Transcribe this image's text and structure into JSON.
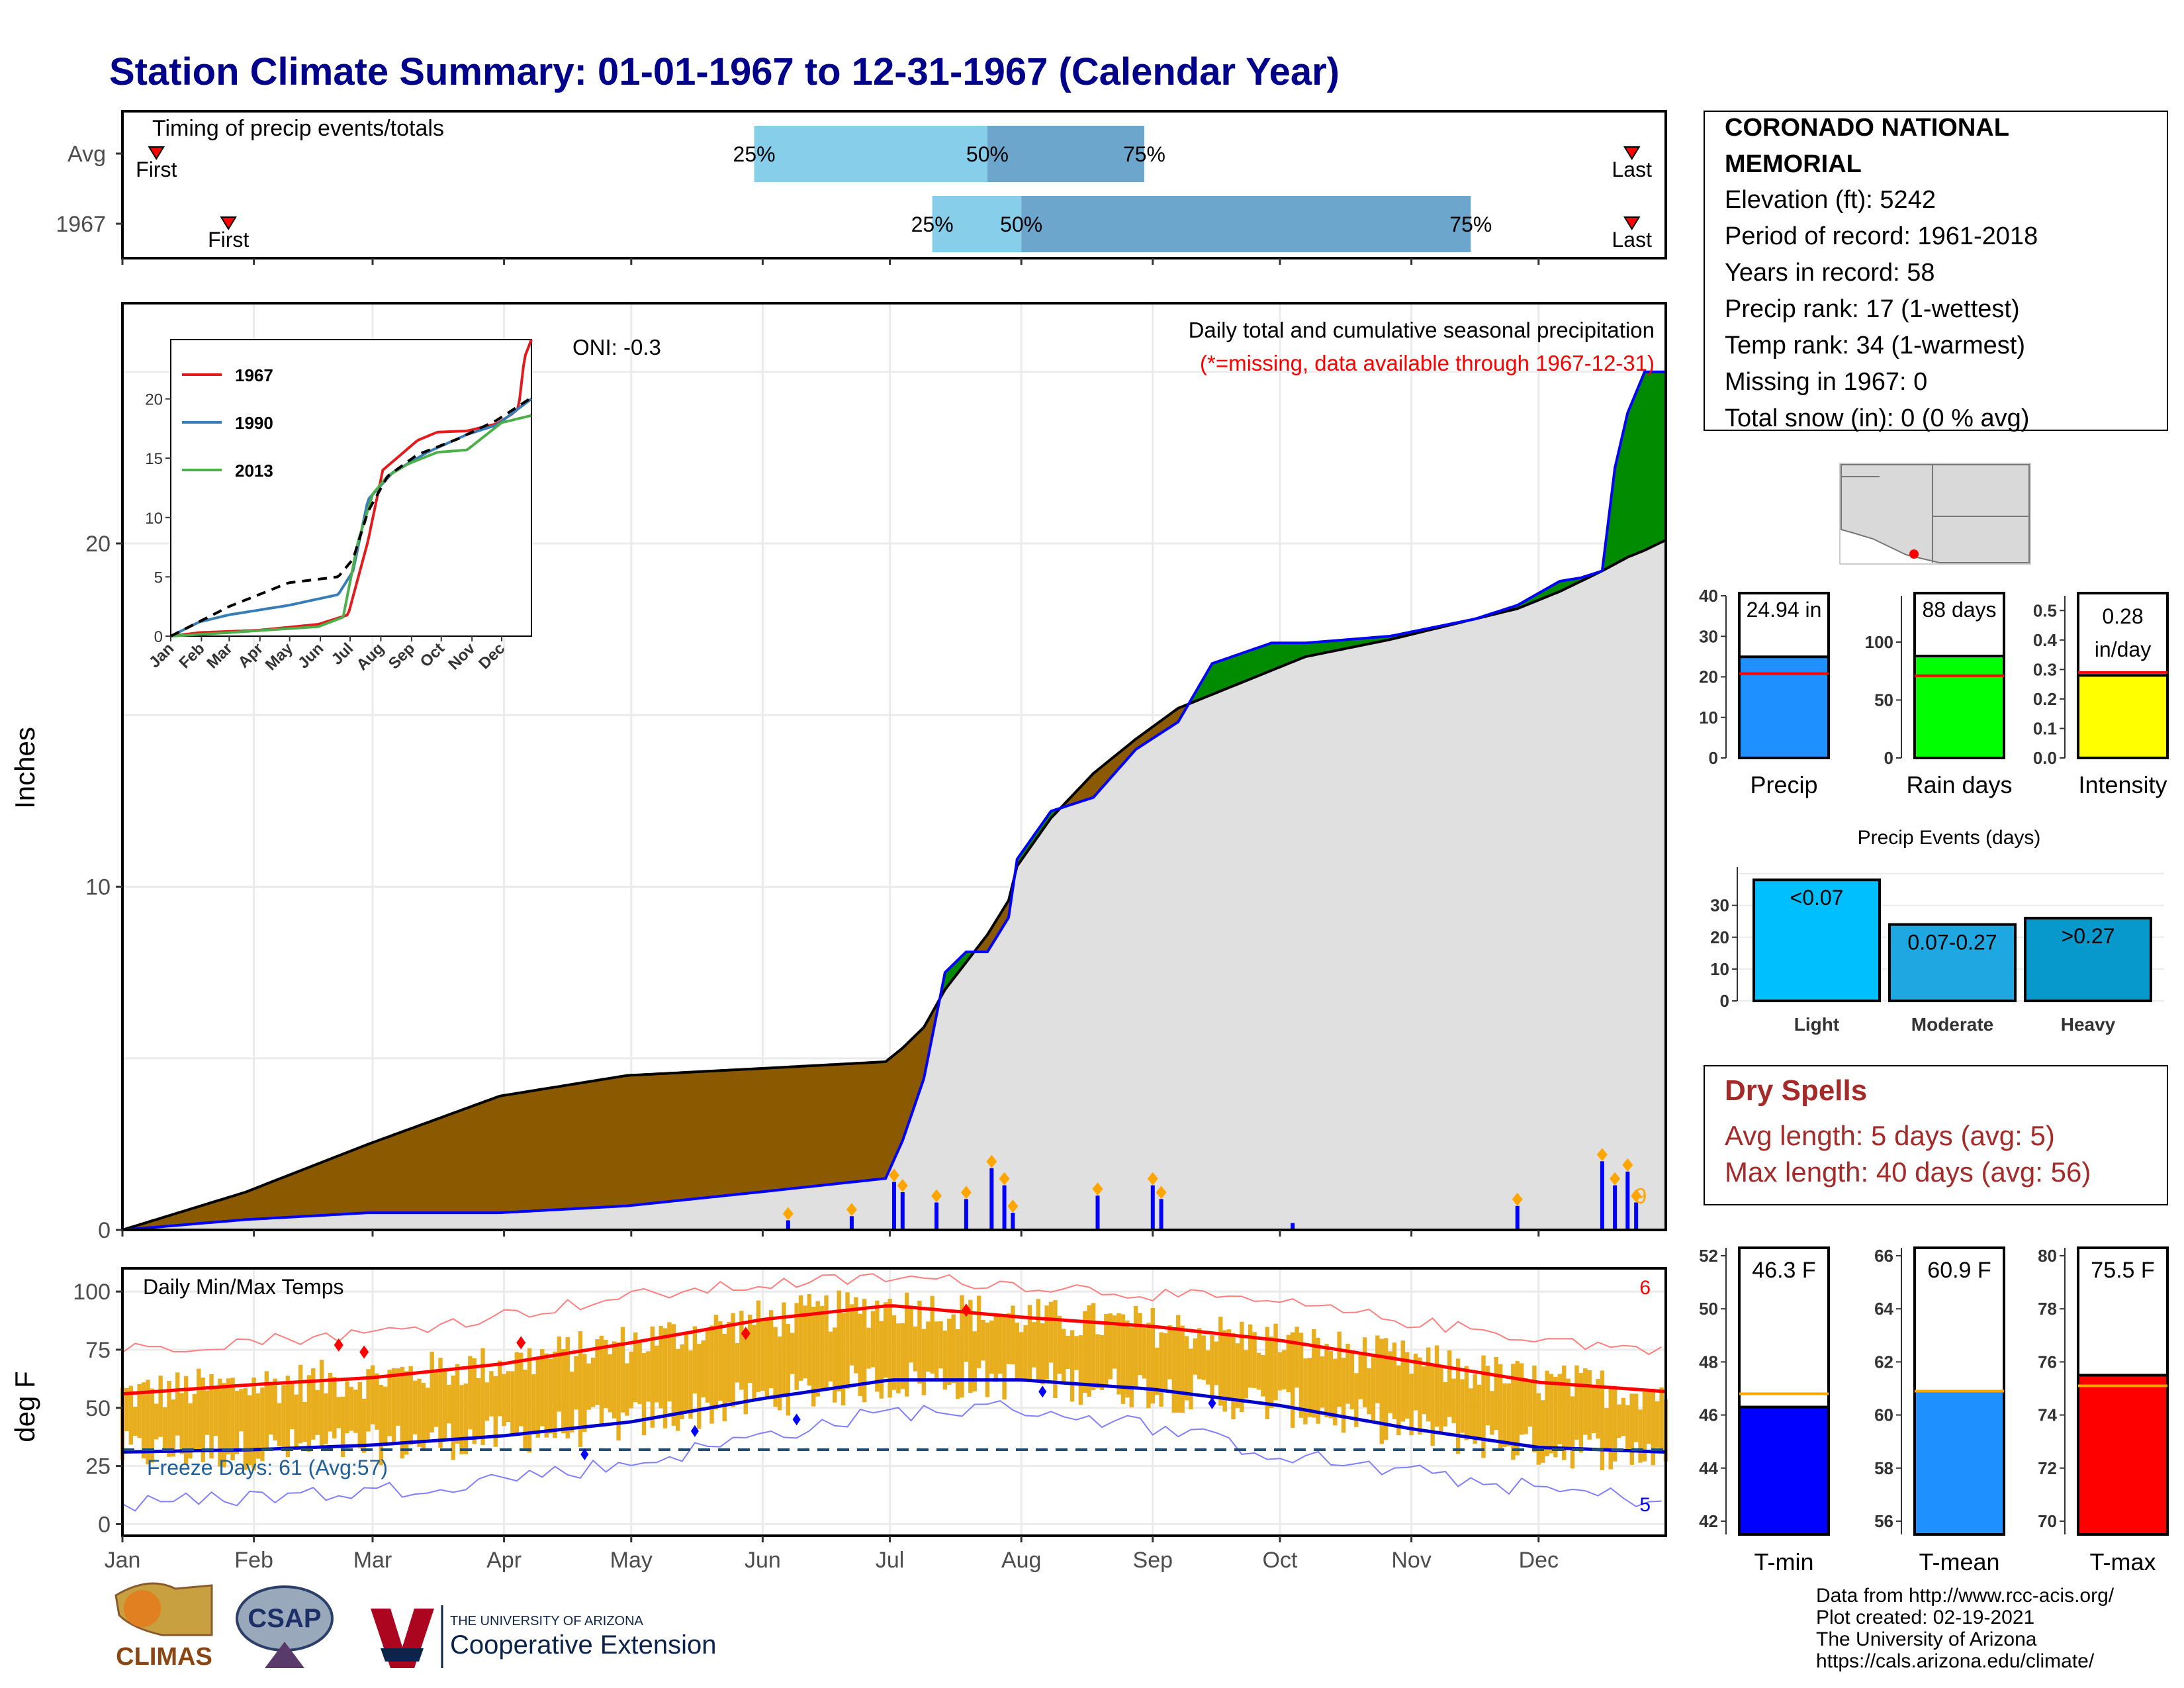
{
  "title": "Station Climate Summary: 01-01-1967 to 12-31-1967 (Calendar Year)",
  "timing_panel": {
    "label": "Timing of precip events/totals",
    "rows": [
      {
        "name": "Avg",
        "first": "First",
        "last": "Last",
        "p25": "25%",
        "p50": "50%",
        "p75": "75%"
      },
      {
        "name": "1967",
        "first": "First",
        "last": "Last",
        "p25": "25%",
        "p50": "50%",
        "p75": "75%"
      }
    ]
  },
  "precip_panel": {
    "ylabel": "Inches",
    "oni": "ONI: -0.3",
    "subtitle": "Daily total and cumulative seasonal precipitation",
    "missing_note": "(*=missing, data available through 1967-12-31)",
    "count_label": "9",
    "yticks": [
      "0",
      "10",
      "20"
    ]
  },
  "inset": {
    "legend": [
      "1967",
      "1990",
      "2013"
    ],
    "yticks": [
      "0",
      "5",
      "10",
      "15",
      "20"
    ],
    "xticks": [
      "Jan",
      "Feb",
      "Mar",
      "Apr",
      "May",
      "Jun",
      "Jul",
      "Aug",
      "Sep",
      "Oct",
      "Nov",
      "Dec"
    ]
  },
  "temp_panel": {
    "ylabel": "deg F",
    "label": "Daily Min/Max Temps",
    "freeze": "Freeze Days: 61 (Avg:57)",
    "max_count": "6",
    "min_count": "5",
    "yticks": [
      "0",
      "25",
      "50",
      "75",
      "100"
    ]
  },
  "x_months": [
    "Jan",
    "Feb",
    "Mar",
    "Apr",
    "May",
    "Jun",
    "Jul",
    "Aug",
    "Sep",
    "Oct",
    "Nov",
    "Dec"
  ],
  "station": {
    "name_line1": "CORONADO NATIONAL",
    "name_line2": "MEMORIAL",
    "lines": [
      "Elevation (ft): 5242",
      "Period of record: 1961-2018",
      "Years in record: 58",
      "Precip rank: 17 (1-wettest)",
      "Temp rank: 34 (1-warmest)",
      "Missing in 1967: 0",
      "Total snow (in): 0 (0 % avg)"
    ]
  },
  "summary_bars": [
    {
      "label": "Precip",
      "value_text": "24.94 in",
      "value": 24.94,
      "avg": 20.8,
      "ymax": 40,
      "yticks": [
        "0",
        "10",
        "20",
        "30",
        "40"
      ],
      "color": "#1e90ff"
    },
    {
      "label": "Rain days",
      "value_text": "88 days",
      "value": 88,
      "avg": 71,
      "ymax": 140,
      "yticks": [
        "0",
        "50",
        "100"
      ],
      "color": "#00ff00"
    },
    {
      "label": "Intensity",
      "value_text_1": "0.28",
      "value_text_2": "in/day",
      "value": 0.28,
      "avg": 0.29,
      "ymax": 0.55,
      "yticks": [
        "0.0",
        "0.1",
        "0.2",
        "0.3",
        "0.4",
        "0.5"
      ],
      "color": "#ffff00"
    }
  ],
  "precip_events": {
    "title": "Precip Events (days)",
    "yticks": [
      "0",
      "10",
      "20",
      "30"
    ],
    "bars": [
      {
        "label": "Light",
        "range": "<0.07",
        "value": 38,
        "color": "#00bfff"
      },
      {
        "label": "Moderate",
        "range": "0.07-0.27",
        "value": 24,
        "color": "#1ea7e1"
      },
      {
        "label": "Heavy",
        "range": ">0.27",
        "value": 26,
        "color": "#0899cc"
      }
    ]
  },
  "dry_spells": {
    "title": "Dry Spells",
    "avg_length": "Avg length: 5 days (avg: 5)",
    "max_length": "Max length: 40 days (avg: 56)"
  },
  "temp_bars": [
    {
      "label": "T-min",
      "value_text": "46.3 F",
      "value": 46.3,
      "avg": 46.8,
      "ymin": 41.5,
      "ymax": 52.3,
      "yticks": [
        "42",
        "44",
        "46",
        "48",
        "50",
        "52"
      ],
      "color": "#0000ff"
    },
    {
      "label": "T-mean",
      "value_text": "60.9 F",
      "value": 60.9,
      "avg": 60.9,
      "ymin": 55.5,
      "ymax": 66.3,
      "yticks": [
        "56",
        "58",
        "60",
        "62",
        "64",
        "66"
      ],
      "color": "#1e90ff"
    },
    {
      "label": "T-max",
      "value_text": "75.5 F",
      "value": 75.5,
      "avg": 75.1,
      "ymin": 69.5,
      "ymax": 80.3,
      "yticks": [
        "70",
        "72",
        "74",
        "76",
        "78",
        "80"
      ],
      "color": "#ff0000"
    }
  ],
  "footer": [
    "Data from http://www.rcc-acis.org/",
    "Plot created: 02-19-2021",
    "The University of Arizona",
    "https://cals.arizona.edu/climate/"
  ],
  "logos": {
    "climas": "CLIMAS",
    "csap": "CSAP",
    "ua_small": "THE UNIVERSITY OF ARIZONA",
    "ua_big": "Cooperative Extension"
  },
  "chart_data": [
    {
      "type": "bar",
      "name": "timing",
      "rows": [
        {
          "name": "Avg",
          "first_day": 9,
          "p25_day": 150,
          "p50_day": 205,
          "p75_day": 242,
          "last_day": 357
        },
        {
          "name": "1967",
          "first_day": 26,
          "p25_day": 192,
          "p50_day": 213,
          "p75_day": 319,
          "last_day": 357
        }
      ],
      "xlim_days": [
        1,
        365
      ]
    },
    {
      "type": "area",
      "name": "cumulative_precip",
      "ylabel": "Inches",
      "ylim": [
        0,
        27
      ],
      "x_day": [
        1,
        30,
        59,
        90,
        120,
        151,
        181,
        185,
        190,
        195,
        200,
        205,
        210,
        212,
        220,
        230,
        240,
        250,
        258,
        272,
        280,
        300,
        320,
        330,
        340,
        345,
        350,
        353,
        356,
        360,
        365
      ],
      "avg_cumulative": [
        0,
        1.1,
        2.5,
        3.9,
        4.5,
        4.7,
        4.9,
        5.3,
        5.9,
        7.0,
        7.8,
        8.6,
        9.6,
        10.6,
        12.0,
        13.3,
        14.3,
        15.2,
        15.6,
        16.3,
        16.7,
        17.2,
        17.8,
        18.1,
        18.6,
        18.9,
        19.2,
        19.4,
        19.6,
        19.8,
        20.1
      ],
      "year_cumulative": [
        0,
        0.3,
        0.5,
        0.5,
        0.7,
        1.1,
        1.5,
        2.6,
        4.4,
        7.5,
        8.1,
        8.1,
        9.1,
        10.8,
        12.2,
        12.6,
        14.0,
        14.8,
        16.5,
        17.1,
        17.1,
        17.3,
        17.8,
        18.2,
        18.9,
        19.0,
        19.2,
        22.2,
        23.8,
        25.0,
        25.0
      ],
      "daily_events": [
        {
          "day": 158,
          "in": 0.28
        },
        {
          "day": 173,
          "in": 0.4
        },
        {
          "day": 183,
          "in": 1.4
        },
        {
          "day": 185,
          "in": 1.1
        },
        {
          "day": 193,
          "in": 0.8
        },
        {
          "day": 200,
          "in": 0.9
        },
        {
          "day": 206,
          "in": 1.8
        },
        {
          "day": 209,
          "in": 1.3
        },
        {
          "day": 211,
          "in": 0.5
        },
        {
          "day": 231,
          "in": 1.0
        },
        {
          "day": 244,
          "in": 1.3
        },
        {
          "day": 246,
          "in": 0.9
        },
        {
          "day": 277,
          "in": 0.2
        },
        {
          "day": 330,
          "in": 0.7
        },
        {
          "day": 350,
          "in": 2.0
        },
        {
          "day": 353,
          "in": 1.3
        },
        {
          "day": 356,
          "in": 1.7
        },
        {
          "day": 358,
          "in": 0.8
        }
      ]
    },
    {
      "type": "line",
      "name": "inset_cumulative",
      "x_months": [
        "Jan",
        "Feb",
        "Mar",
        "Apr",
        "May",
        "Jun",
        "Jul",
        "Aug",
        "Sep",
        "Oct",
        "Nov",
        "Dec"
      ],
      "ylim": [
        0,
        25
      ],
      "series": [
        {
          "name": "1967",
          "color": "#e41a1c",
          "x_day": [
            1,
            30,
            90,
            150,
            180,
            200,
            215,
            250,
            270,
            300,
            330,
            345,
            352,
            358,
            365
          ],
          "y": [
            0,
            0.3,
            0.5,
            1.0,
            1.8,
            8.0,
            14.0,
            16.5,
            17.2,
            17.3,
            17.9,
            18.7,
            19.2,
            23.5,
            25.0
          ]
        },
        {
          "name": "1990",
          "color": "#377eb8",
          "x_day": [
            1,
            30,
            60,
            120,
            170,
            185,
            200,
            225,
            260,
            300,
            330,
            365
          ],
          "y": [
            0,
            1.2,
            1.8,
            2.6,
            3.5,
            5.5,
            11.5,
            13.8,
            15.5,
            17.0,
            17.8,
            20.0
          ]
        },
        {
          "name": "2013",
          "color": "#4daf4a",
          "x_day": [
            1,
            60,
            150,
            175,
            190,
            205,
            220,
            240,
            270,
            300,
            335,
            365
          ],
          "y": [
            0,
            0.3,
            0.8,
            1.6,
            8.0,
            12.0,
            13.5,
            14.5,
            15.5,
            15.7,
            18.0,
            18.6
          ]
        },
        {
          "name": "Avg",
          "color": "#000000",
          "dashed": true,
          "x_day": [
            1,
            60,
            120,
            170,
            185,
            200,
            220,
            250,
            290,
            330,
            365
          ],
          "y": [
            0,
            2.5,
            4.5,
            5.0,
            6.5,
            10.5,
            13.5,
            15.3,
            16.6,
            18.2,
            20.1
          ]
        }
      ]
    },
    {
      "type": "line",
      "name": "daily_temps",
      "ylabel": "deg F",
      "ylim": [
        -5,
        110
      ],
      "x_day": [
        1,
        32,
        60,
        91,
        121,
        152,
        182,
        213,
        244,
        274,
        305,
        335,
        365
      ],
      "avg_max": [
        56,
        60,
        63,
        69,
        78,
        88,
        94,
        89,
        85,
        79,
        70,
        61,
        57
      ],
      "avg_min": [
        31,
        32,
        34,
        38,
        44,
        54,
        62,
        62,
        58,
        51,
        41,
        33,
        31
      ],
      "record_max": [
        75,
        79,
        82,
        90,
        98,
        103,
        106,
        103,
        99,
        95,
        87,
        80,
        74
      ],
      "record_min": [
        8,
        12,
        14,
        20,
        26,
        38,
        48,
        50,
        42,
        30,
        22,
        15,
        10
      ],
      "freeze_line": 32,
      "freeze_days": 61,
      "freeze_days_avg": 57
    },
    {
      "type": "bar",
      "name": "precip_events",
      "categories": [
        "Light",
        "Moderate",
        "Heavy"
      ],
      "values": [
        38,
        24,
        26
      ],
      "ylim": [
        0,
        42
      ]
    }
  ]
}
